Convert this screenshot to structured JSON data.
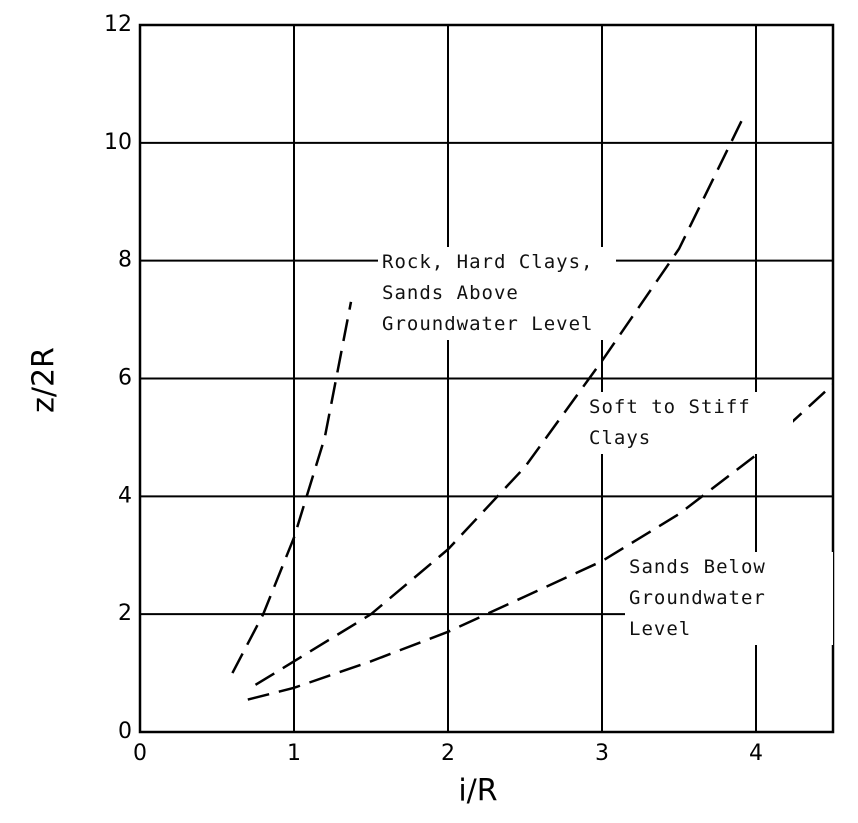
{
  "chart_data": {
    "type": "line",
    "x_label": "i/R",
    "y_label": "z/2R",
    "xlim": [
      0,
      4.5
    ],
    "ylim": [
      0,
      12
    ],
    "xticks": [
      0,
      1,
      2,
      3,
      4
    ],
    "yticks": [
      0,
      2,
      4,
      6,
      8,
      10,
      12
    ],
    "grid": true,
    "dashed": true,
    "series": [
      {
        "name": "Rock, Hard Clays, Sands Above Groundwater Level",
        "color": "#000000",
        "x": [
          0.6,
          0.8,
          1.0,
          1.2,
          1.37
        ],
        "values": [
          1.0,
          2.0,
          3.3,
          5.0,
          7.3
        ]
      },
      {
        "name": "Soft to Stiff Clays",
        "color": "#000000",
        "x": [
          0.75,
          1.0,
          1.5,
          2.0,
          2.5,
          3.0,
          3.5,
          3.93
        ],
        "values": [
          0.8,
          1.2,
          2.0,
          3.1,
          4.5,
          6.3,
          8.2,
          10.5
        ]
      },
      {
        "name": "Sands Below Groundwater Level",
        "color": "#000000",
        "x": [
          0.7,
          1.0,
          1.5,
          2.0,
          2.5,
          3.0,
          3.5,
          4.0,
          4.5
        ],
        "values": [
          0.55,
          0.75,
          1.2,
          1.7,
          2.3,
          2.9,
          3.7,
          4.7,
          5.9
        ]
      }
    ]
  }
}
